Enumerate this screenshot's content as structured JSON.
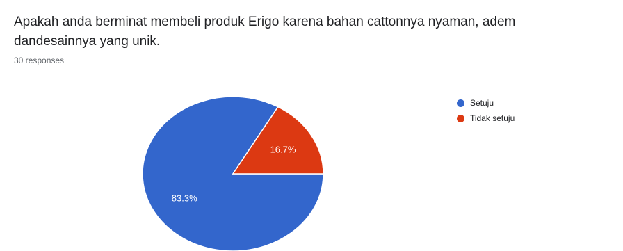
{
  "question": {
    "line1": "Apakah anda berminat membeli produk Erigo karena bahan cattonnya nyaman, adem",
    "line2": "dandesainnya yang unik."
  },
  "responses_label": "30 responses",
  "colors": {
    "setuju": "#3366cc",
    "tidak_setuju": "#dc3912"
  },
  "chart_data": {
    "type": "pie",
    "title": "",
    "slices": [
      {
        "label": "Setuju",
        "value": 83.3,
        "display": "83.3%",
        "color": "#3366cc"
      },
      {
        "label": "Tidak setuju",
        "value": 16.7,
        "display": "16.7%",
        "color": "#dc3912"
      }
    ],
    "legend": [
      "Setuju",
      "Tidak setuju"
    ],
    "legend_position": "right"
  }
}
